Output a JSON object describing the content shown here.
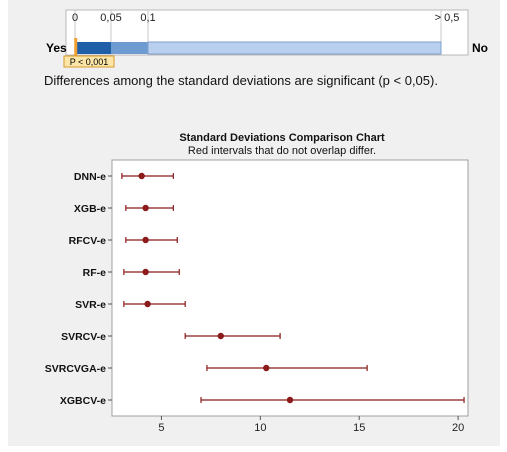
{
  "significance_bar": {
    "scale_labels": [
      "0",
      "0,05",
      "0,1",
      "> 0,5"
    ],
    "scale_values": [
      0,
      0.05,
      0.1,
      0.5
    ],
    "yes_label": "Yes",
    "no_label": "No",
    "p_badge": "P < 0,001",
    "p_value": 0.001,
    "colors": {
      "dark": "#1f5fa8",
      "mid": "#6f9bd3",
      "light": "#b8cfee",
      "marker": "#f0a030",
      "badge_bg": "#fbe6a8",
      "badge_border": "#d89a2a"
    }
  },
  "description": "Differences among the standard deviations are significant (p < 0,05).",
  "chart_data": {
    "type": "interval",
    "title": "Standard Deviations Comparison Chart",
    "subtitle": "Red intervals that do not overlap differ.",
    "categories": [
      "DNN-e",
      "XGB-e",
      "RFCV-e",
      "RF-e",
      "SVR-e",
      "SVRCV-e",
      "SVRCVGA-e",
      "XGBCV-e"
    ],
    "estimates": [
      4.0,
      4.2,
      4.2,
      4.2,
      4.3,
      8.0,
      10.3,
      11.5
    ],
    "lower": [
      3.0,
      3.2,
      3.2,
      3.1,
      3.1,
      6.2,
      7.3,
      7.0
    ],
    "upper": [
      5.6,
      5.6,
      5.8,
      5.9,
      6.2,
      11.0,
      15.4,
      20.3
    ],
    "xlim": [
      2.5,
      20.5
    ],
    "xticks": [
      5,
      10,
      15,
      20
    ],
    "color": "#8b1a1a"
  }
}
